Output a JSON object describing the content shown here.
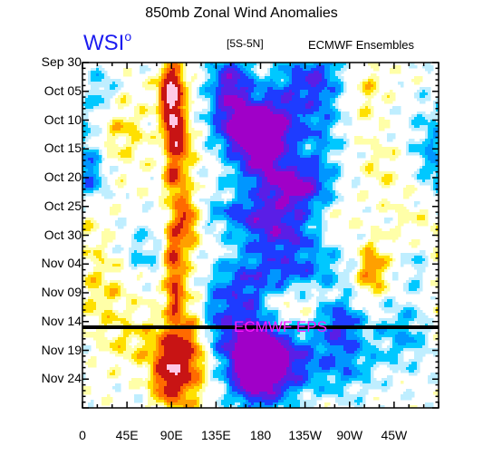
{
  "page": {
    "title": "850mb Zonal Wind Anomalies",
    "logo": "WSI",
    "logo_sup": "o",
    "region": "[5S-5N]",
    "model": "ECMWF Ensembles",
    "eps_label": "ECMWF EPS"
  },
  "chart_data": {
    "type": "heatmap",
    "title": "850mb Zonal Wind Anomalies",
    "subtitle": "[5S-5N]",
    "xlabel": "",
    "ylabel": "",
    "x_ticks": [
      "0",
      "45E",
      "90E",
      "135E",
      "180",
      "135W",
      "90W",
      "45W"
    ],
    "x_tick_degrees": [
      0,
      45,
      90,
      135,
      180,
      225,
      270,
      315
    ],
    "xlim": [
      0,
      360
    ],
    "y_ticks": [
      "Sep 30",
      "Oct 05",
      "Oct 10",
      "Oct 15",
      "Oct 20",
      "Oct 25",
      "Oct 30",
      "Nov 04",
      "Nov 09",
      "Nov 14",
      "Nov 19",
      "Nov 24"
    ],
    "y_tick_days": [
      0,
      5,
      10,
      15,
      20,
      25,
      30,
      35,
      40,
      45,
      50,
      55
    ],
    "ylim_days": [
      0,
      60
    ],
    "forecast_start_day": 45,
    "forecast_label": "ECMWF EPS",
    "forecast_source": "ECMWF Ensembles",
    "colors": {
      "strong_westerly": "#ffc8e6",
      "westerly_4": "#c81414",
      "westerly_3": "#ff6a00",
      "westerly_2": "#ffa000",
      "westerly_1": "#ffe000",
      "weak_westerly": "#ffffa8",
      "neutral": "#ffffff",
      "weak_easterly": "#bfeeff",
      "easterly_1": "#00c8ff",
      "easterly_2": "#0096ff",
      "easterly_3": "#1e3cff",
      "easterly_4": "#5a1ee6",
      "strong_easterly": "#a000c8"
    },
    "features": [
      {
        "lon": 90,
        "day": 5,
        "value": 9
      },
      {
        "lon": 91,
        "day": 14,
        "value": 5
      },
      {
        "lon": 92,
        "day": 20,
        "value": 4
      },
      {
        "lon": 105,
        "day": 27,
        "value": 4
      },
      {
        "lon": 92,
        "day": 34,
        "value": 4
      },
      {
        "lon": 98,
        "day": 52,
        "value": 6
      },
      {
        "lon": 292,
        "day": 36,
        "value": 4
      },
      {
        "lon": 155,
        "day": 9,
        "value": -7
      },
      {
        "lon": 175,
        "day": 14,
        "value": -7
      },
      {
        "lon": 215,
        "day": 22,
        "value": -5
      },
      {
        "lon": 200,
        "day": 30,
        "value": -5
      },
      {
        "lon": 180,
        "day": 53,
        "value": -7
      },
      {
        "lon": 260,
        "day": 45,
        "value": -4
      }
    ]
  }
}
